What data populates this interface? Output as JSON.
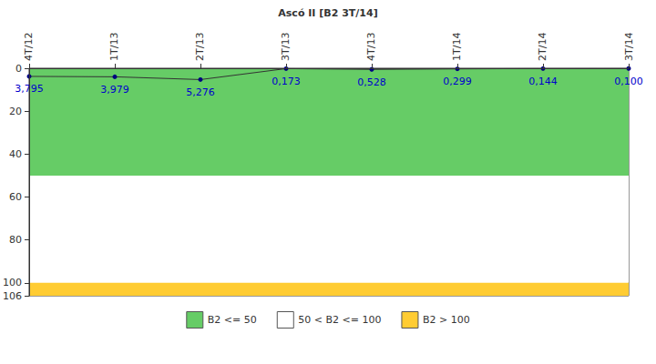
{
  "chart_data": {
    "type": "line",
    "title": "Ascó II [B2 3T/14]",
    "categories": [
      "4T/12",
      "1T/13",
      "2T/13",
      "3T/13",
      "4T/13",
      "1T/14",
      "2T/14",
      "3T/14"
    ],
    "values": [
      3.795,
      3.979,
      5.276,
      0.173,
      0.528,
      0.299,
      0.144,
      0.1
    ],
    "value_labels": [
      "3,795",
      "3,979",
      "5,276",
      "0,173",
      "0,528",
      "0,299",
      "0,144",
      "0,100"
    ],
    "data_labels": true,
    "color": "#333333",
    "marker": "circle",
    "ylim": [
      0,
      106
    ],
    "yticks": [
      0,
      20,
      40,
      60,
      80,
      100
    ],
    "grid": false,
    "legend": "bottom",
    "bands": [
      {
        "name": "B2 <= 50",
        "color": "#66cc66",
        "from": 0,
        "to": 50
      },
      {
        "name": "50 < B2 <= 100",
        "color": "#ffffff",
        "from": 50,
        "to": 100
      },
      {
        "name": "B2 > 100",
        "color": "#ffcc33",
        "from": 100,
        "to": 106
      }
    ]
  }
}
